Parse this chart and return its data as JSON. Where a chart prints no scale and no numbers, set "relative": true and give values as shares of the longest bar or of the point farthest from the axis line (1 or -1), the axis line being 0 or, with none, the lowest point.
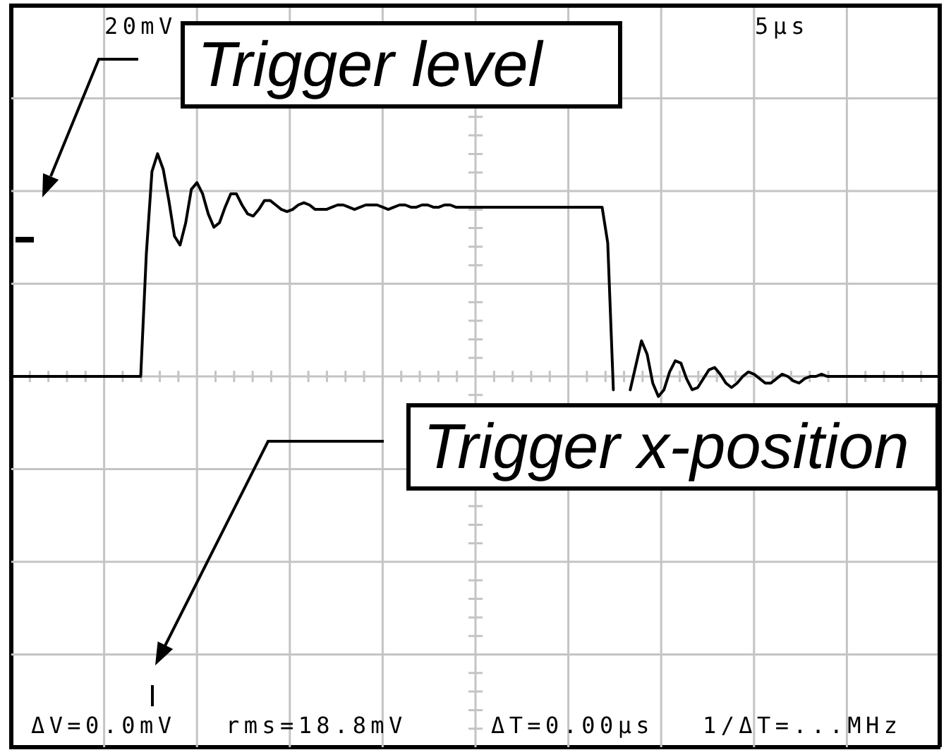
{
  "chart_data": {
    "type": "line",
    "relative": true,
    "grid": true,
    "categories": [
      null,
      null,
      null,
      null,
      null,
      null,
      null,
      null,
      null,
      null,
      null,
      null,
      null,
      null,
      null,
      null,
      null,
      null,
      null,
      null,
      null,
      null,
      null,
      null,
      null,
      null,
      null,
      null,
      null,
      null,
      null,
      null,
      null,
      null,
      null,
      null,
      null,
      null,
      null,
      null,
      null,
      null,
      null,
      null,
      null,
      null,
      null,
      null,
      null,
      null,
      null,
      null,
      null,
      null,
      null,
      null,
      null,
      null,
      null,
      null,
      null,
      null,
      null,
      null,
      null,
      null,
      null,
      null,
      null,
      null,
      null,
      null,
      null,
      null,
      null,
      null,
      null,
      null,
      null,
      null,
      null,
      null,
      null,
      null,
      null,
      null,
      null,
      null,
      null,
      null,
      null,
      null,
      null,
      null,
      null,
      null,
      null,
      null,
      null,
      null,
      null,
      null,
      null,
      null,
      null,
      null,
      null,
      null,
      null,
      null,
      null,
      null,
      null,
      null,
      null,
      null,
      null,
      null,
      null,
      null,
      null,
      null,
      null,
      null,
      null,
      null,
      null,
      null,
      null,
      null,
      null,
      null,
      null,
      null,
      null,
      null,
      null,
      null,
      null,
      null,
      null,
      null,
      null,
      null,
      null,
      null,
      null,
      null,
      null,
      null,
      null,
      null,
      null,
      null,
      null,
      null,
      null,
      null,
      null,
      null,
      null,
      null,
      null,
      null,
      null,
      null
    ],
    "series": [
      {
        "color": "#000000",
        "values": [
          0,
          0,
          0,
          0,
          0,
          0,
          0,
          0,
          0,
          0,
          0,
          0,
          0,
          0,
          0,
          0,
          0,
          0,
          0,
          0,
          0,
          0,
          0,
          0,
          0.55,
          0.92,
          1,
          0.93,
          0.79,
          0.63,
          0.59,
          0.69,
          0.84,
          0.87,
          0.82,
          0.73,
          0.67,
          0.69,
          0.76,
          0.82,
          0.82,
          0.77,
          0.73,
          0.72,
          0.75,
          0.79,
          0.79,
          0.77,
          0.75,
          0.74,
          0.75,
          0.77,
          0.78,
          0.77,
          0.75,
          0.75,
          0.75,
          0.76,
          0.77,
          0.77,
          0.76,
          0.75,
          0.76,
          0.77,
          0.77,
          0.77,
          0.76,
          0.75,
          0.76,
          0.77,
          0.77,
          0.76,
          0.76,
          0.77,
          0.77,
          0.76,
          0.76,
          0.77,
          0.77,
          0.76,
          0.76,
          0.76,
          0.76,
          0.76,
          0.76,
          0.76,
          0.76,
          0.76,
          0.76,
          0.76,
          0.76,
          0.76,
          0.76,
          0.76,
          0.76,
          0.76,
          0.76,
          0.76,
          0.76,
          0.76,
          0.76,
          0.76,
          0.76,
          0.76,
          0.76,
          0.76,
          0.6,
          -0.06,
          null,
          null,
          -0.06,
          0.05,
          0.16,
          0.1,
          -0.03,
          -0.09,
          -0.06,
          0.02,
          0.07,
          0.06,
          -0.01,
          -0.06,
          -0.05,
          -0.01,
          0.03,
          0.04,
          0.01,
          -0.03,
          -0.05,
          -0.03,
          0,
          0.02,
          0.01,
          -0.01,
          -0.03,
          -0.03,
          -0.01,
          0.01,
          0,
          -0.02,
          -0.03,
          -0.01,
          0,
          0,
          0.01,
          0,
          0,
          0,
          0,
          0,
          0,
          0,
          0,
          0,
          0,
          0,
          0,
          0,
          0,
          0,
          0,
          0,
          0,
          0,
          0,
          0
        ]
      }
    ],
    "annotations": [
      "20mV",
      "5μs",
      "Trigger level",
      "Trigger x-position",
      "ΔV=0.0mV",
      "rms=18.8mV",
      "ΔT=0.00μs",
      "1/ΔT=...MHz"
    ]
  }
}
